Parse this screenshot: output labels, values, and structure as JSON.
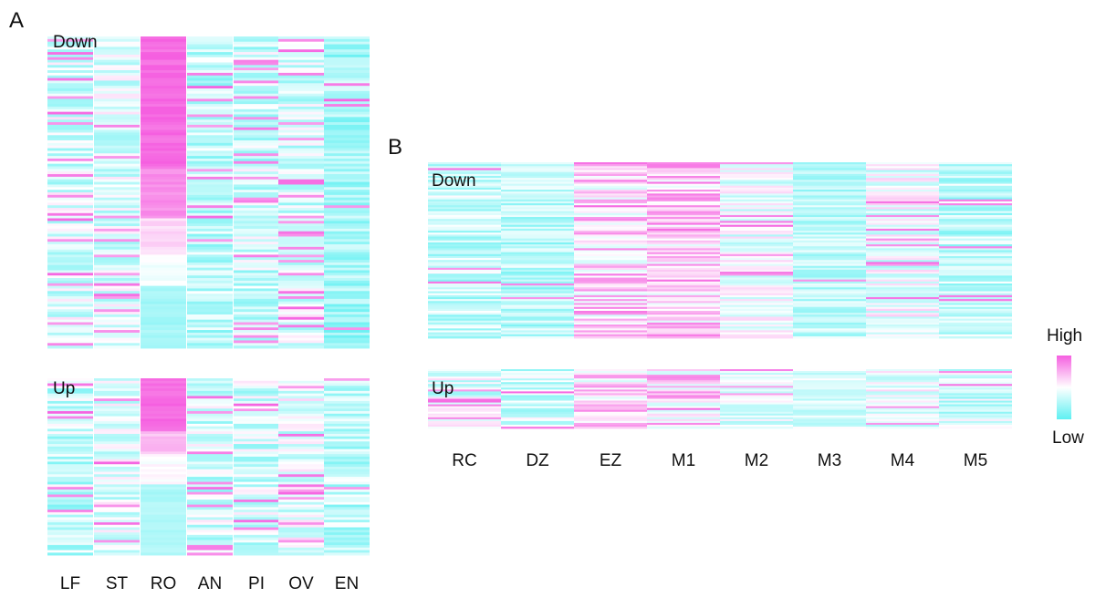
{
  "chart_data": [
    {
      "type": "heatmap",
      "panel_label": "A",
      "columns": [
        "LF",
        "ST",
        "RO",
        "AN",
        "PI",
        "OV",
        "EN"
      ],
      "blocks": [
        {
          "label": "Down",
          "rows": 120,
          "column_profiles": [
            {
              "column": "LF",
              "base": 0.38,
              "spread": 0.22,
              "high_stripe_rate": 0.1
            },
            {
              "column": "ST",
              "base": 0.4,
              "spread": 0.2,
              "high_stripe_rate": 0.1
            },
            {
              "column": "RO",
              "segments": [
                [
                  0,
                  0.42,
                  0.96
                ],
                [
                  0.42,
                  0.58,
                  0.85
                ],
                [
                  0.58,
                  0.7,
                  0.62
                ],
                [
                  0.7,
                  0.8,
                  0.48
                ],
                [
                  0.8,
                  1.0,
                  0.22
                ]
              ]
            },
            {
              "column": "AN",
              "base": 0.3,
              "spread": 0.2,
              "high_stripe_rate": 0.08
            },
            {
              "column": "PI",
              "base": 0.34,
              "spread": 0.22,
              "high_stripe_rate": 0.1
            },
            {
              "column": "OV",
              "base": 0.38,
              "spread": 0.22,
              "high_stripe_rate": 0.12
            },
            {
              "column": "EN",
              "base": 0.22,
              "spread": 0.18,
              "high_stripe_rate": 0.04
            }
          ]
        },
        {
          "label": "Up",
          "rows": 70,
          "column_profiles": [
            {
              "column": "LF",
              "base": 0.32,
              "spread": 0.22,
              "high_stripe_rate": 0.08
            },
            {
              "column": "ST",
              "base": 0.4,
              "spread": 0.2,
              "high_stripe_rate": 0.1
            },
            {
              "column": "RO",
              "segments": [
                [
                  0,
                  0.3,
                  0.96
                ],
                [
                  0.3,
                  0.42,
                  0.7
                ],
                [
                  0.42,
                  0.6,
                  0.5
                ],
                [
                  0.6,
                  1.0,
                  0.25
                ]
              ]
            },
            {
              "column": "AN",
              "base": 0.36,
              "spread": 0.22,
              "high_stripe_rate": 0.1
            },
            {
              "column": "PI",
              "base": 0.36,
              "spread": 0.22,
              "high_stripe_rate": 0.08
            },
            {
              "column": "OV",
              "base": 0.42,
              "spread": 0.22,
              "high_stripe_rate": 0.14
            },
            {
              "column": "EN",
              "base": 0.3,
              "spread": 0.2,
              "high_stripe_rate": 0.06
            }
          ]
        }
      ],
      "color_scale": {
        "low": "#5ef0f2",
        "mid": "#ffffff",
        "high": "#f55fe0"
      }
    },
    {
      "type": "heatmap",
      "panel_label": "B",
      "columns": [
        "RC",
        "DZ",
        "EZ",
        "M1",
        "M2",
        "M3",
        "M4",
        "M5"
      ],
      "blocks": [
        {
          "label": "Down",
          "rows": 90,
          "column_profiles": [
            {
              "column": "RC",
              "base": 0.32,
              "spread": 0.2,
              "high_stripe_rate": 0.06
            },
            {
              "column": "DZ",
              "base": 0.28,
              "spread": 0.18,
              "high_stripe_rate": 0.03
            },
            {
              "column": "EZ",
              "base": 0.6,
              "spread": 0.25,
              "high_stripe_rate": 0.2
            },
            {
              "column": "M1",
              "base": 0.64,
              "spread": 0.25,
              "high_stripe_rate": 0.22
            },
            {
              "column": "M2",
              "base": 0.44,
              "spread": 0.2,
              "high_stripe_rate": 0.06
            },
            {
              "column": "M3",
              "base": 0.3,
              "spread": 0.16,
              "high_stripe_rate": 0.02
            },
            {
              "column": "M4",
              "base": 0.44,
              "spread": 0.22,
              "high_stripe_rate": 0.08
            },
            {
              "column": "M5",
              "base": 0.3,
              "spread": 0.2,
              "high_stripe_rate": 0.04
            }
          ]
        },
        {
          "label": "Up",
          "rows": 32,
          "column_profiles": [
            {
              "column": "RC",
              "base": 0.4,
              "spread": 0.22,
              "high_stripe_rate": 0.1
            },
            {
              "column": "DZ",
              "base": 0.36,
              "spread": 0.2,
              "high_stripe_rate": 0.06
            },
            {
              "column": "EZ",
              "base": 0.6,
              "spread": 0.25,
              "high_stripe_rate": 0.2
            },
            {
              "column": "M1",
              "base": 0.56,
              "spread": 0.22,
              "high_stripe_rate": 0.14
            },
            {
              "column": "M2",
              "base": 0.4,
              "spread": 0.16,
              "high_stripe_rate": 0.04
            },
            {
              "column": "M3",
              "base": 0.38,
              "spread": 0.14,
              "high_stripe_rate": 0.02
            },
            {
              "column": "M4",
              "base": 0.44,
              "spread": 0.2,
              "high_stripe_rate": 0.08
            },
            {
              "column": "M5",
              "base": 0.36,
              "spread": 0.22,
              "high_stripe_rate": 0.06
            }
          ]
        }
      ],
      "color_scale": {
        "low": "#5ef0f2",
        "mid": "#ffffff",
        "high": "#f55fe0"
      }
    }
  ],
  "legend": {
    "high_label": "High",
    "low_label": "Low"
  }
}
